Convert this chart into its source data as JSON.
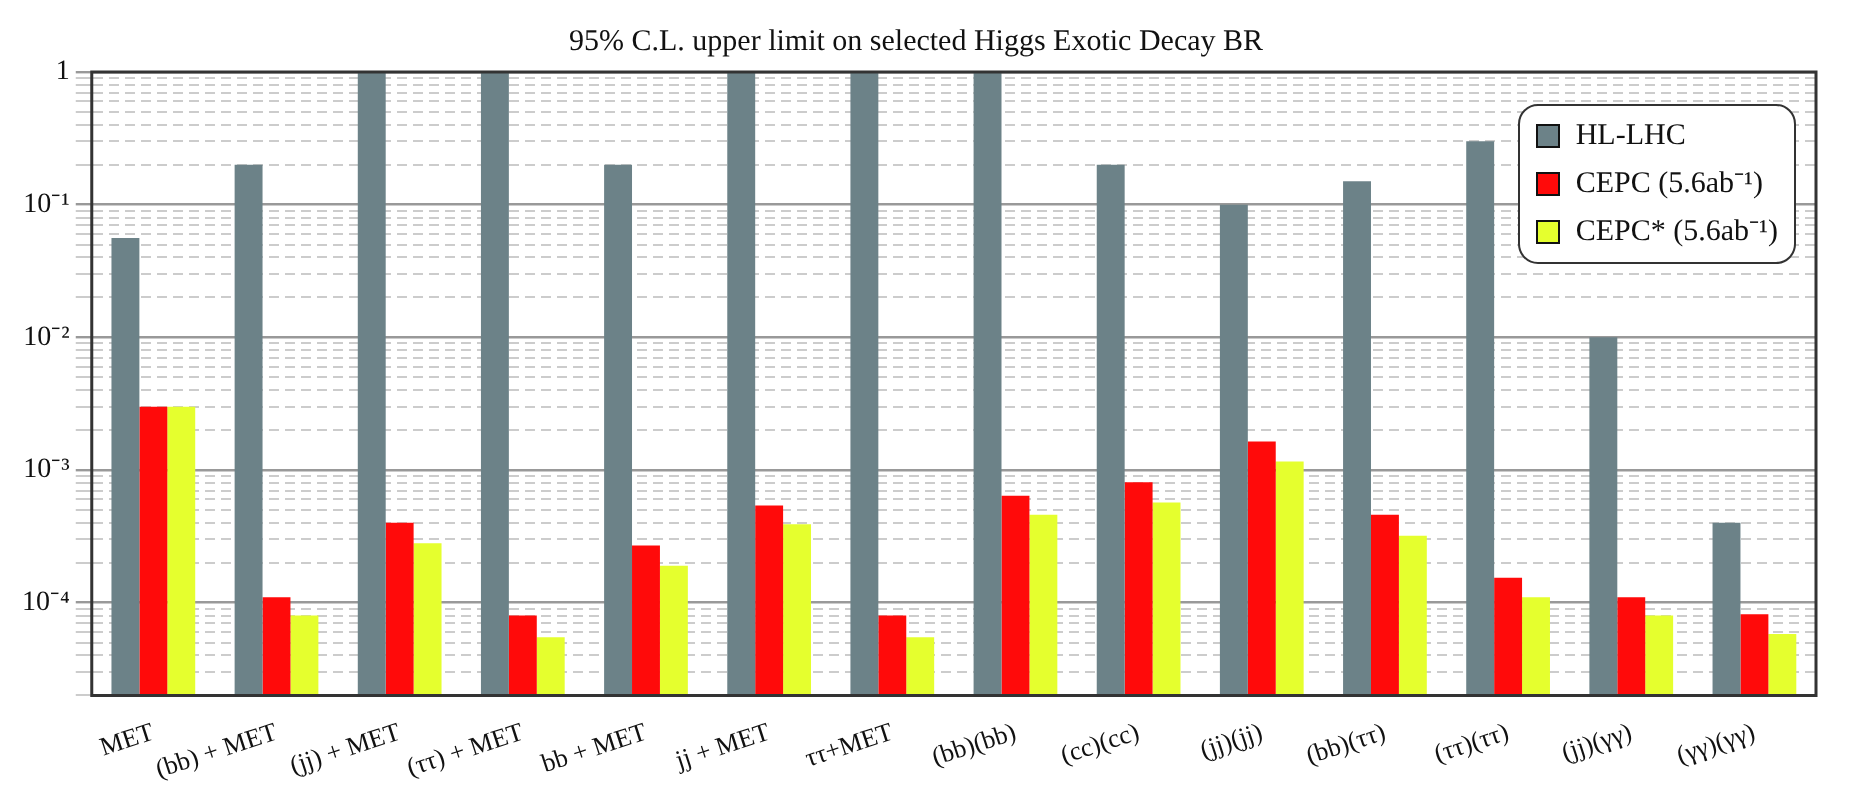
{
  "chart_data": {
    "type": "bar",
    "title": "95% C.L. upper limit on selected Higgs Exotic Decay BR",
    "categories": [
      "MET",
      "(bb) + MET",
      "(jj) + MET",
      "(ττ) + MET",
      "bb + MET",
      "jj + MET",
      "ττ+MET",
      "(bb)(bb)",
      "(cc)(cc)",
      "(jj)(jj)",
      "(bb)(ττ)",
      "(ττ)(ττ)",
      "(jj)(γγ)",
      "(γγ)(γγ)"
    ],
    "series": [
      {
        "name": "HL-LHC",
        "color": "#6c8288",
        "values": [
          0.056,
          0.2,
          1,
          1,
          0.2,
          1,
          1,
          1,
          0.2,
          0.1,
          0.15,
          0.3,
          0.01,
          0.0004
        ]
      },
      {
        "name": "CEPC (5.6ab⁻¹)",
        "color": "#ff0a0a",
        "values": [
          0.003,
          0.00011,
          0.0004,
          8e-05,
          0.00027,
          0.00054,
          8e-05,
          0.00064,
          0.00081,
          0.00164,
          0.00046,
          0.000154,
          0.00011,
          8.2e-05
        ]
      },
      {
        "name": "CEPC* (5.6ab⁻¹)",
        "color": "#e5ff2e",
        "values": [
          0.003,
          8e-05,
          0.00028,
          5.5e-05,
          0.00019,
          0.00039,
          5.5e-05,
          0.00046,
          0.00057,
          0.00116,
          0.00032,
          0.00011,
          8e-05,
          5.8e-05
        ]
      }
    ],
    "log": "y",
    "ylim": [
      2e-05,
      1
    ],
    "yticks": [
      {
        "value": 2e-05,
        "label": null
      },
      {
        "value": 3e-05,
        "label": null
      },
      {
        "value": 4e-05,
        "label": null
      },
      {
        "value": 5e-05,
        "label": null
      },
      {
        "value": 6e-05,
        "label": null
      },
      {
        "value": 7e-05,
        "label": null
      },
      {
        "value": 8e-05,
        "label": null
      },
      {
        "value": 9e-05,
        "label": null
      },
      {
        "value": 0.0001,
        "label": "10⁻⁴"
      },
      {
        "value": 0.0002,
        "label": null
      },
      {
        "value": 0.0003,
        "label": null
      },
      {
        "value": 0.0004,
        "label": null
      },
      {
        "value": 0.0005,
        "label": null
      },
      {
        "value": 0.0006,
        "label": null
      },
      {
        "value": 0.0007,
        "label": null
      },
      {
        "value": 0.0008,
        "label": null
      },
      {
        "value": 0.0009,
        "label": null
      },
      {
        "value": 0.001,
        "label": "10⁻³"
      },
      {
        "value": 0.002,
        "label": null
      },
      {
        "value": 0.003,
        "label": null
      },
      {
        "value": 0.004,
        "label": null
      },
      {
        "value": 0.005,
        "label": null
      },
      {
        "value": 0.006,
        "label": null
      },
      {
        "value": 0.007,
        "label": null
      },
      {
        "value": 0.008,
        "label": null
      },
      {
        "value": 0.009,
        "label": null
      },
      {
        "value": 0.01,
        "label": "10⁻²"
      },
      {
        "value": 0.02,
        "label": null
      },
      {
        "value": 0.03,
        "label": null
      },
      {
        "value": 0.04,
        "label": null
      },
      {
        "value": 0.05,
        "label": null
      },
      {
        "value": 0.06,
        "label": null
      },
      {
        "value": 0.07,
        "label": null
      },
      {
        "value": 0.08,
        "label": null
      },
      {
        "value": 0.09,
        "label": null
      },
      {
        "value": 0.1,
        "label": "10⁻¹"
      },
      {
        "value": 0.2,
        "label": null
      },
      {
        "value": 0.3,
        "label": null
      },
      {
        "value": 0.4,
        "label": null
      },
      {
        "value": 0.5,
        "label": null
      },
      {
        "value": 0.6,
        "label": null
      },
      {
        "value": 0.7,
        "label": null
      },
      {
        "value": 0.8,
        "label": null
      },
      {
        "value": 0.9,
        "label": null
      },
      {
        "value": 1,
        "label": "1"
      }
    ],
    "grid": "y",
    "legend": "top right"
  }
}
